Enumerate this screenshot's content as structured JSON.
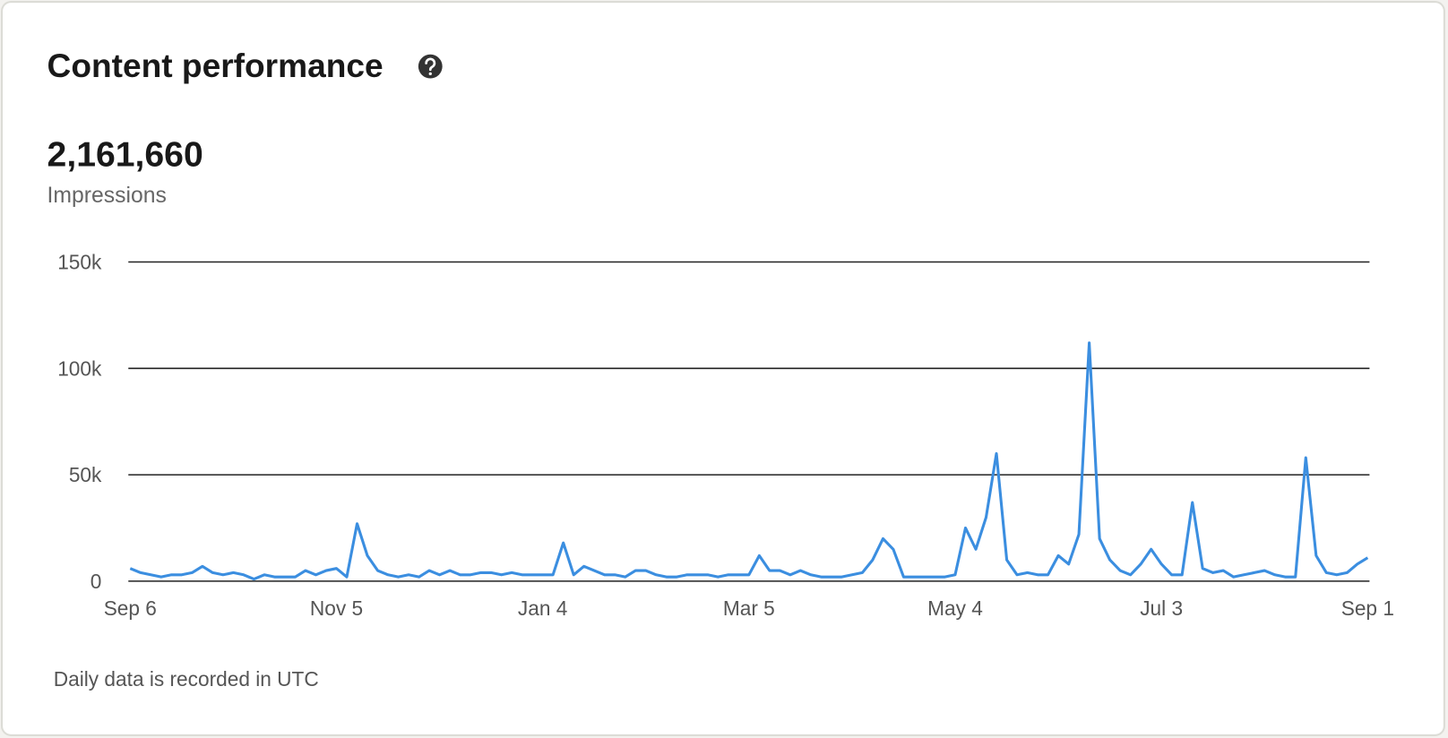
{
  "header": {
    "title": "Content performance",
    "total": "2,161,660",
    "metric": "Impressions"
  },
  "footnote": "Daily data is recorded in UTC",
  "chart_data": {
    "type": "line",
    "categories": [
      "Sep 6",
      null,
      null,
      null,
      null,
      null,
      null,
      null,
      null,
      null,
      null,
      null,
      null,
      null,
      null,
      null,
      null,
      null,
      null,
      null,
      "Nov 5",
      null,
      null,
      null,
      null,
      null,
      null,
      null,
      null,
      null,
      null,
      null,
      null,
      null,
      null,
      null,
      null,
      null,
      null,
      null,
      "Jan 4",
      null,
      null,
      null,
      null,
      null,
      null,
      null,
      null,
      null,
      null,
      null,
      null,
      null,
      null,
      null,
      null,
      null,
      null,
      null,
      "Mar 5",
      null,
      null,
      null,
      null,
      null,
      null,
      null,
      null,
      null,
      null,
      null,
      null,
      null,
      null,
      null,
      null,
      null,
      null,
      null,
      "May 4",
      null,
      null,
      null,
      null,
      null,
      null,
      null,
      null,
      null,
      null,
      null,
      null,
      null,
      null,
      null,
      null,
      null,
      null,
      null,
      "Jul 3",
      null,
      null,
      null,
      null,
      null,
      null,
      null,
      null,
      null,
      null,
      null,
      null,
      null,
      null,
      null,
      null,
      null,
      null,
      null,
      "Sep 1"
    ],
    "series": [
      {
        "name": "Impressions",
        "color": "#3b8ee0",
        "values": [
          6000,
          4000,
          3000,
          2000,
          3000,
          3000,
          4000,
          7000,
          4000,
          3000,
          4000,
          3000,
          1000,
          3000,
          2000,
          2000,
          2000,
          5000,
          3000,
          5000,
          6000,
          2000,
          27000,
          12000,
          5000,
          3000,
          2000,
          3000,
          2000,
          5000,
          3000,
          5000,
          3000,
          3000,
          4000,
          4000,
          3000,
          4000,
          3000,
          3000,
          3000,
          3000,
          18000,
          3000,
          7000,
          5000,
          3000,
          3000,
          2000,
          5000,
          5000,
          3000,
          2000,
          2000,
          3000,
          3000,
          3000,
          2000,
          3000,
          3000,
          3000,
          12000,
          5000,
          5000,
          3000,
          5000,
          3000,
          2000,
          2000,
          2000,
          3000,
          4000,
          10000,
          20000,
          15000,
          2000,
          2000,
          2000,
          2000,
          2000,
          3000,
          25000,
          15000,
          30000,
          60000,
          10000,
          3000,
          4000,
          3000,
          3000,
          12000,
          8000,
          22000,
          112000,
          20000,
          10000,
          5000,
          3000,
          8000,
          15000,
          8000,
          3000,
          3000,
          37000,
          6000,
          4000,
          5000,
          2000,
          3000,
          4000,
          5000,
          3000,
          2000,
          2000,
          58000,
          12000,
          4000,
          3000,
          4000,
          8000,
          11000
        ]
      }
    ],
    "ylim": [
      0,
      150000
    ],
    "yticks": [
      0,
      {
        "value": 50000,
        "label": "50k"
      },
      {
        "value": 100000,
        "label": "100k"
      },
      {
        "value": 150000,
        "label": "150k"
      }
    ],
    "grid": true
  }
}
